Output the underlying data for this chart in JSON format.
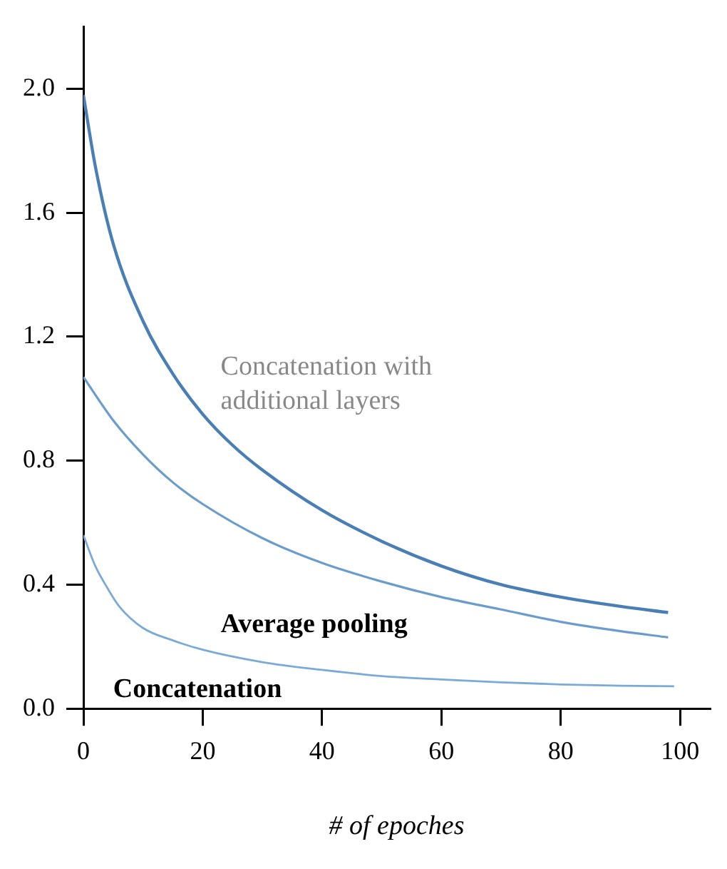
{
  "chart_data": {
    "type": "line",
    "xlabel": "# of epoches",
    "xlim": [
      0,
      105
    ],
    "xticks": [
      0,
      20,
      40,
      60,
      80,
      100
    ],
    "ylim": [
      0,
      2.2
    ],
    "yticks": [
      {
        "value": 0,
        "label": "0.0"
      },
      0.4,
      0.8,
      1.2,
      1.6,
      {
        "value": 2,
        "label": "2.0"
      }
    ],
    "grid": false,
    "legend": false,
    "marker": "none",
    "line_style": "solid",
    "series": [
      {
        "name": "Concatenation with additional layers",
        "color": "#4a7fb5",
        "x": [
          0,
          2,
          5,
          10,
          15,
          20,
          25,
          30,
          40,
          50,
          60,
          70,
          80,
          90,
          98
        ],
        "values": [
          1.98,
          1.75,
          1.5,
          1.25,
          1.08,
          0.95,
          0.85,
          0.77,
          0.64,
          0.54,
          0.46,
          0.4,
          0.36,
          0.33,
          0.31
        ]
      },
      {
        "name": "Average pooling",
        "color": "#6a9ccc",
        "x": [
          0,
          5,
          10,
          15,
          20,
          30,
          40,
          50,
          60,
          70,
          80,
          90,
          98
        ],
        "values": [
          1.07,
          0.93,
          0.82,
          0.73,
          0.66,
          0.55,
          0.47,
          0.41,
          0.36,
          0.32,
          0.28,
          0.25,
          0.23
        ]
      },
      {
        "name": "Concatenation",
        "color": "#7aaad6",
        "x": [
          0,
          2,
          4,
          6,
          10,
          15,
          20,
          30,
          40,
          50,
          60,
          70,
          80,
          90,
          99
        ],
        "values": [
          0.56,
          0.46,
          0.39,
          0.33,
          0.26,
          0.22,
          0.19,
          0.15,
          0.125,
          0.105,
          0.094,
          0.085,
          0.078,
          0.074,
          0.072
        ]
      }
    ]
  }
}
